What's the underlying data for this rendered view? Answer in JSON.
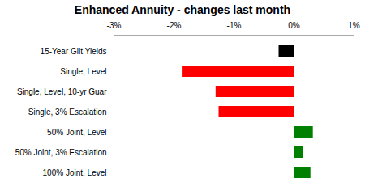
{
  "chart_data": {
    "type": "bar",
    "orientation": "horizontal",
    "title": "Enhanced Annuity - changes last month",
    "categories": [
      "15-Year Gilt Yields",
      "Single, Level",
      "Single, Level, 10-yr Guar",
      "Single, 3% Escalation",
      "50% Joint, Level",
      "50% Joint, 3% Escalation",
      "100% Joint, Level"
    ],
    "values": [
      -0.25,
      -1.85,
      -1.3,
      -1.25,
      0.32,
      0.15,
      0.28
    ],
    "colors": [
      "#000000",
      "#ff0000",
      "#ff0000",
      "#ff0000",
      "#008000",
      "#008000",
      "#008000"
    ],
    "xlim": [
      -3.0,
      1.0
    ],
    "xticks": [
      {
        "value": -3,
        "label": "-3%"
      },
      {
        "value": -2,
        "label": "-2%"
      },
      {
        "value": -1,
        "label": "-1%"
      },
      {
        "value": 0,
        "label": "0%"
      },
      {
        "value": 1,
        "label": "1%"
      }
    ],
    "grid": true
  }
}
